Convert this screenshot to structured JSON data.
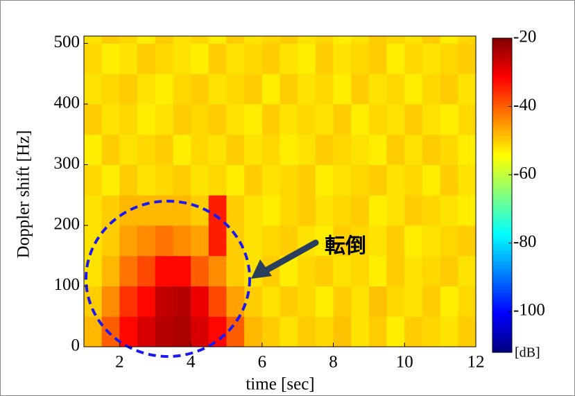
{
  "chart_data": {
    "type": "heatmap",
    "xlabel": "time [sec]",
    "ylabel": "Doppler shift [Hz]",
    "xlim": [
      1,
      12
    ],
    "ylim": [
      0,
      512
    ],
    "xticks": [
      2,
      4,
      6,
      8,
      10,
      12
    ],
    "yticks": [
      0,
      100,
      200,
      300,
      400,
      500
    ],
    "colormap": "jet",
    "clim": [
      -112,
      -20
    ],
    "colorbar_ticks": [
      -20,
      -40,
      -60,
      -80,
      -100
    ],
    "colorbar_label": "[dB]",
    "annotation": "転倒",
    "xbins": [
      1,
      1.5,
      2,
      2.5,
      3,
      3.5,
      4,
      4.5,
      5,
      5.5,
      6,
      6.5,
      7,
      7.5,
      8,
      8.5,
      9,
      9.5,
      10,
      10.5,
      11,
      11.5,
      12
    ],
    "ybins": [
      0,
      50,
      100,
      150,
      200,
      250,
      300,
      350,
      400,
      450,
      500,
      512
    ],
    "z": [
      [
        -48,
        -40,
        -32,
        -28,
        -25,
        -24,
        -28,
        -32,
        -40,
        -48,
        -50,
        -52,
        -50,
        -51,
        -49,
        -52,
        -50,
        -53,
        -50,
        -51,
        -52,
        -50
      ],
      [
        -50,
        -44,
        -36,
        -32,
        -26,
        -25,
        -30,
        -38,
        -46,
        -50,
        -52,
        -50,
        -51,
        -53,
        -50,
        -52,
        -49,
        -51,
        -52,
        -50,
        -53,
        -51
      ],
      [
        -52,
        -48,
        -42,
        -38,
        -32,
        -32,
        -40,
        -44,
        -50,
        -52,
        -50,
        -53,
        -51,
        -50,
        -52,
        -51,
        -53,
        -50,
        -52,
        -51,
        -50,
        -52
      ],
      [
        -52,
        -50,
        -46,
        -44,
        -42,
        -44,
        -46,
        -34,
        -50,
        -52,
        -51,
        -50,
        -52,
        -53,
        -50,
        -51,
        -52,
        -50,
        -53,
        -52,
        -51,
        -50
      ],
      [
        -52,
        -50,
        -48,
        -48,
        -48,
        -48,
        -50,
        -34,
        -50,
        -52,
        -53,
        -51,
        -50,
        -52,
        -51,
        -50,
        -53,
        -52,
        -50,
        -51,
        -52,
        -53
      ],
      [
        -51,
        -53,
        -50,
        -52,
        -51,
        -50,
        -52,
        -51,
        -53,
        -50,
        -52,
        -51,
        -50,
        -53,
        -52,
        -51,
        -50,
        -52,
        -51,
        -53,
        -50,
        -52
      ],
      [
        -53,
        -50,
        -52,
        -51,
        -50,
        -53,
        -51,
        -52,
        -50,
        -52,
        -51,
        -53,
        -52,
        -50,
        -51,
        -52,
        -53,
        -50,
        -52,
        -50,
        -51,
        -53
      ],
      [
        -50,
        -52,
        -51,
        -53,
        -52,
        -50,
        -51,
        -50,
        -52,
        -53,
        -50,
        -52,
        -51,
        -52,
        -50,
        -53,
        -51,
        -52,
        -50,
        -52,
        -53,
        -51
      ],
      [
        -52,
        -51,
        -50,
        -52,
        -53,
        -51,
        -50,
        -52,
        -51,
        -50,
        -53,
        -50,
        -52,
        -51,
        -53,
        -50,
        -52,
        -51,
        -53,
        -51,
        -50,
        -52
      ],
      [
        -51,
        -53,
        -52,
        -50,
        -51,
        -52,
        -53,
        -50,
        -52,
        -51,
        -50,
        -52,
        -53,
        -50,
        -52,
        -51,
        -50,
        -53,
        -51,
        -52,
        -51,
        -50
      ],
      [
        -52,
        -50,
        -51,
        -53,
        -50,
        -52,
        -51,
        -53,
        -50,
        -52,
        -51,
        -50,
        -52,
        -51,
        -53,
        -52,
        -50,
        -51,
        -52,
        -50,
        -53,
        -51
      ]
    ]
  }
}
